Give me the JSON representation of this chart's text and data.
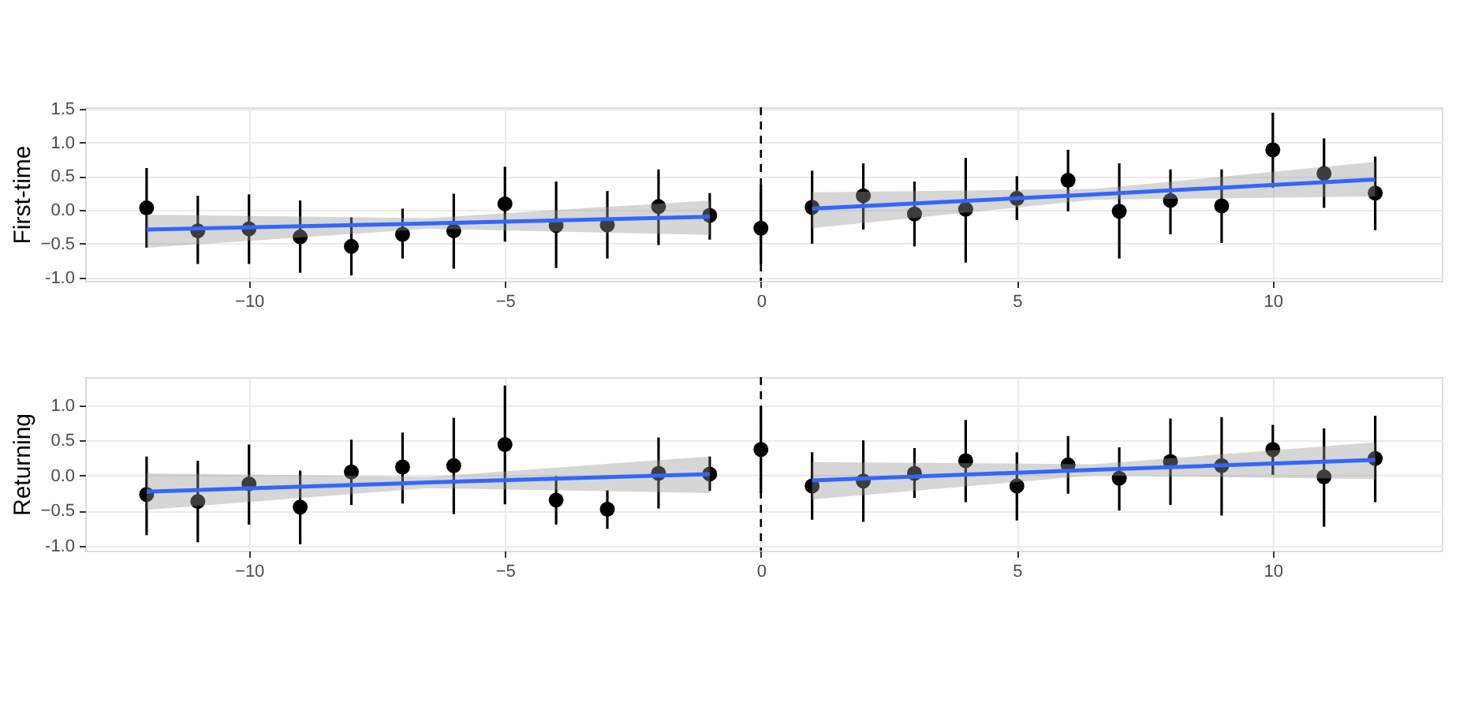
{
  "chart_data": [
    {
      "type": "scatter",
      "ylabel": "First-time",
      "xlim": [
        -13.2,
        13.3
      ],
      "xticks": [
        -10,
        -5,
        0,
        5,
        10
      ],
      "ylim": [
        -1.05,
        1.52
      ],
      "yticks": [
        {
          "value": -1,
          "label": "-1.0"
        },
        -0.5,
        {
          "value": 0,
          "label": "0.0"
        },
        0.5,
        {
          "value": 1,
          "label": "1.0"
        },
        1.5
      ],
      "grid": true,
      "ref_lines": [
        {
          "axis": "x",
          "value": 0,
          "color": "#000000",
          "line_style": "dashed"
        }
      ],
      "series": [
        {
          "marker": "circle",
          "color": "#000000",
          "x": [
            -12,
            -11,
            -10,
            -9,
            -8,
            -7,
            -6,
            -5,
            -4,
            -3,
            -2,
            -1,
            0,
            1,
            2,
            3,
            4,
            5,
            6,
            7,
            8,
            9,
            10,
            11,
            12
          ],
          "values": [
            0.03,
            -0.31,
            -0.28,
            -0.4,
            -0.54,
            -0.36,
            -0.31,
            0.09,
            -0.23,
            -0.22,
            0.05,
            -0.08,
            -0.27,
            0.04,
            0.21,
            -0.06,
            0.01,
            0.17,
            0.44,
            -0.02,
            0.14,
            0.06,
            0.89,
            0.54,
            0.25
          ],
          "errors": [
            [
              -0.56,
              0.62
            ],
            [
              -0.8,
              0.21
            ],
            [
              -0.8,
              0.23
            ],
            [
              -0.93,
              0.14
            ],
            [
              -0.97,
              -0.11
            ],
            [
              -0.72,
              0.02
            ],
            [
              -0.87,
              0.24
            ],
            [
              -0.47,
              0.64
            ],
            [
              -0.86,
              0.42
            ],
            [
              -0.72,
              0.28
            ],
            [
              -0.52,
              0.6
            ],
            [
              -0.44,
              0.25
            ],
            [
              -0.8,
              0.37
            ],
            [
              -0.5,
              0.58
            ],
            [
              -0.29,
              0.69
            ],
            [
              -0.54,
              0.42
            ],
            [
              -0.78,
              0.77
            ],
            [
              -0.15,
              0.5
            ],
            [
              -0.02,
              0.89
            ],
            [
              -0.72,
              0.69
            ],
            [
              -0.36,
              0.6
            ],
            [
              -0.49,
              0.6
            ],
            [
              0.33,
              1.44
            ],
            [
              0.03,
              1.06
            ],
            [
              -0.3,
              0.79
            ]
          ]
        },
        {
          "type": "line",
          "color": "#3366ff",
          "x": [
            -12,
            -6.5,
            -1
          ],
          "values": [
            -0.29,
            -0.2,
            -0.1
          ],
          "lower": [
            -0.56,
            -0.28,
            -0.37
          ],
          "upper": [
            -0.07,
            -0.12,
            0.14
          ]
        },
        {
          "type": "line",
          "color": "#3366ff",
          "x": [
            1,
            6.5,
            12
          ],
          "values": [
            0.02,
            0.23,
            0.45
          ],
          "lower": [
            -0.27,
            0.15,
            0.2
          ],
          "upper": [
            0.26,
            0.31,
            0.71
          ]
        }
      ]
    },
    {
      "type": "scatter",
      "ylabel": "Returning",
      "xlim": [
        -13.2,
        13.3
      ],
      "xticks": [
        -10,
        -5,
        0,
        5,
        10
      ],
      "ylim": [
        -1.07,
        1.4
      ],
      "yticks": [
        {
          "value": -1,
          "label": "-1.0"
        },
        -0.5,
        {
          "value": 0,
          "label": "0.0"
        },
        0.5,
        {
          "value": 1,
          "label": "1.0"
        }
      ],
      "grid": true,
      "ref_lines": [
        {
          "axis": "x",
          "value": 0,
          "color": "#000000",
          "line_style": "dashed"
        }
      ],
      "series": [
        {
          "marker": "circle",
          "color": "#000000",
          "x": [
            -12,
            -11,
            -10,
            -9,
            -8,
            -7,
            -6,
            -5,
            -4,
            -3,
            -2,
            -1,
            0,
            1,
            2,
            3,
            4,
            5,
            6,
            7,
            8,
            9,
            10,
            11,
            12
          ],
          "values": [
            -0.27,
            -0.37,
            -0.12,
            -0.45,
            0.05,
            0.12,
            0.14,
            0.44,
            -0.35,
            -0.48,
            0.03,
            0.02,
            0.37,
            -0.15,
            -0.08,
            0.03,
            0.21,
            -0.15,
            0.15,
            -0.04,
            0.2,
            0.14,
            0.37,
            -0.02,
            0.24
          ],
          "errors": [
            [
              -0.85,
              0.27
            ],
            [
              -0.95,
              0.21
            ],
            [
              -0.7,
              0.44
            ],
            [
              -0.98,
              0.07
            ],
            [
              -0.42,
              0.51
            ],
            [
              -0.4,
              0.61
            ],
            [
              -0.55,
              0.82
            ],
            [
              -0.41,
              1.28
            ],
            [
              -0.7,
              -0.01
            ],
            [
              -0.76,
              -0.21
            ],
            [
              -0.47,
              0.54
            ],
            [
              -0.22,
              0.27
            ],
            [
              -0.25,
              0.98
            ],
            [
              -0.63,
              0.33
            ],
            [
              -0.66,
              0.5
            ],
            [
              -0.32,
              0.39
            ],
            [
              -0.38,
              0.79
            ],
            [
              -0.64,
              0.33
            ],
            [
              -0.26,
              0.56
            ],
            [
              -0.5,
              0.4
            ],
            [
              -0.42,
              0.81
            ],
            [
              -0.57,
              0.83
            ],
            [
              0.01,
              0.72
            ],
            [
              -0.73,
              0.67
            ],
            [
              -0.38,
              0.85
            ]
          ]
        },
        {
          "type": "line",
          "color": "#3366ff",
          "x": [
            -12,
            -6.5,
            -1
          ],
          "values": [
            -0.23,
            -0.1,
            0.02
          ],
          "lower": [
            -0.49,
            -0.18,
            -0.25
          ],
          "upper": [
            0.03,
            -0.02,
            0.27
          ]
        },
        {
          "type": "line",
          "color": "#3366ff",
          "x": [
            1,
            6.5,
            12
          ],
          "values": [
            -0.07,
            0.08,
            0.22
          ],
          "lower": [
            -0.34,
            0.0,
            -0.05
          ],
          "upper": [
            0.19,
            0.16,
            0.47
          ]
        }
      ]
    }
  ]
}
